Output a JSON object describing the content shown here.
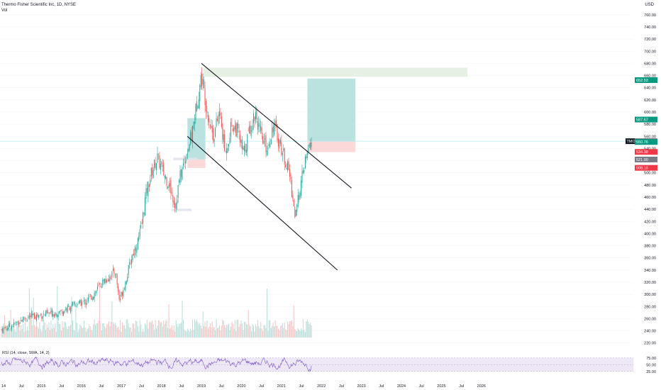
{
  "header": {
    "title": "Thermo Fisher Scientific Inc, 1D, NYSE",
    "volume_label": "Vol",
    "currency": "USD"
  },
  "rsi_label": "RSI (14, close, SMA, 14, 2)",
  "colors": {
    "up": "#26a69a",
    "down": "#ef5350",
    "rsi_line": "#7e57c2",
    "rsi_band": "#ede7f6",
    "trend_line": "#131722",
    "target_zone": "#b2dfdb",
    "stop_zone": "#fbd5d5",
    "supply_zone": "#e4efe0",
    "ticker_tag": "#131722",
    "current_line": "#b2ebf2"
  },
  "ticker_tag": "TMO",
  "chart_data": {
    "type": "candlestick",
    "x_labels": [
      "14",
      "Jul",
      "2015",
      "Jul",
      "2016",
      "Jul",
      "2017",
      "Jul",
      "2018",
      "Jul",
      "2019",
      "Jul",
      "2020",
      "Jul",
      "2021",
      "Jul",
      "2022",
      "Jul",
      "2023",
      "Jul",
      "2024",
      "Jul",
      "2025",
      "Jul",
      "2026"
    ],
    "y_ticks": [
      220,
      240,
      260,
      280,
      300,
      320,
      340,
      360,
      380,
      400,
      420,
      440,
      460,
      480,
      500,
      520,
      540,
      560,
      580,
      600,
      620,
      640,
      660,
      680,
      700,
      720,
      740,
      760
    ],
    "ylim": [
      215,
      775
    ],
    "rsi_ticks": [
      "75.00",
      "50.00",
      "25.00"
    ],
    "rsi_levels": [
      70,
      50,
      30
    ],
    "price_tags": [
      {
        "text": "652.53",
        "value": 652.53,
        "color": "#089981"
      },
      {
        "text": "587.67",
        "value": 587.67,
        "color": "#089981"
      },
      {
        "text": "552.08",
        "value": 552.08,
        "color": "#787b86"
      },
      {
        "text": "550.76",
        "value": 550.76,
        "color": "#089981"
      },
      {
        "text": "534.38",
        "value": 534.38,
        "color": "#f23645"
      },
      {
        "text": "521.90",
        "value": 521.9,
        "color": "#787b86"
      },
      {
        "text": "508.18",
        "value": 508.18,
        "color": "#f23645"
      }
    ],
    "price_path": [
      [
        0,
        242
      ],
      [
        0.6,
        250
      ],
      [
        1.2,
        262
      ],
      [
        1.8,
        265
      ],
      [
        2.4,
        268
      ],
      [
        3.0,
        272
      ],
      [
        3.6,
        282
      ],
      [
        4.2,
        288
      ],
      [
        4.6,
        300
      ],
      [
        5.0,
        318
      ],
      [
        5.4,
        330
      ],
      [
        5.7,
        338
      ],
      [
        5.9,
        290
      ],
      [
        6.2,
        320
      ],
      [
        6.5,
        360
      ],
      [
        6.8,
        385
      ],
      [
        7.0,
        410
      ],
      [
        7.2,
        460
      ],
      [
        7.5,
        500
      ],
      [
        7.8,
        525
      ],
      [
        8.1,
        500
      ],
      [
        8.4,
        480
      ],
      [
        8.7,
        445
      ],
      [
        8.9,
        490
      ],
      [
        9.2,
        525
      ],
      [
        9.5,
        560
      ],
      [
        9.8,
        620
      ],
      [
        10.0,
        660
      ],
      [
        10.3,
        600
      ],
      [
        10.6,
        560
      ],
      [
        10.9,
        600
      ],
      [
        11.2,
        530
      ],
      [
        11.5,
        580
      ],
      [
        11.8,
        570
      ],
      [
        12.1,
        530
      ],
      [
        12.4,
        570
      ],
      [
        12.7,
        600
      ],
      [
        13.0,
        555
      ],
      [
        13.3,
        540
      ],
      [
        13.6,
        580
      ],
      [
        13.9,
        550
      ],
      [
        14.1,
        530
      ],
      [
        14.4,
        500
      ],
      [
        14.7,
        425
      ],
      [
        14.9,
        470
      ],
      [
        15.2,
        520
      ],
      [
        15.5,
        552
      ]
    ],
    "channel_lines": [
      {
        "from": [
          10.0,
          680
        ],
        "to": [
          17.5,
          475
        ]
      },
      {
        "from": [
          9.3,
          560
        ],
        "to": [
          16.8,
          340
        ]
      }
    ],
    "zones": [
      {
        "kind": "target",
        "x": [
          15.3,
          17.7
        ],
        "y": [
          552,
          655
        ]
      },
      {
        "kind": "stop",
        "x": [
          15.3,
          17.7
        ],
        "y": [
          534,
          552
        ]
      },
      {
        "kind": "target",
        "x": [
          9.3,
          10.2
        ],
        "y": [
          522,
          590
        ]
      },
      {
        "kind": "stop",
        "x": [
          9.3,
          10.2
        ],
        "y": [
          508,
          522
        ]
      },
      {
        "kind": "supply",
        "x": [
          10.1,
          23.3
        ],
        "y": [
          658,
          673
        ]
      },
      {
        "kind": "level",
        "x": [
          8.5,
          9.5
        ],
        "y": [
          437,
          441
        ]
      },
      {
        "kind": "level",
        "x": [
          8.6,
          9.8
        ],
        "y": [
          521,
          525
        ]
      }
    ],
    "current_price": 552
  }
}
